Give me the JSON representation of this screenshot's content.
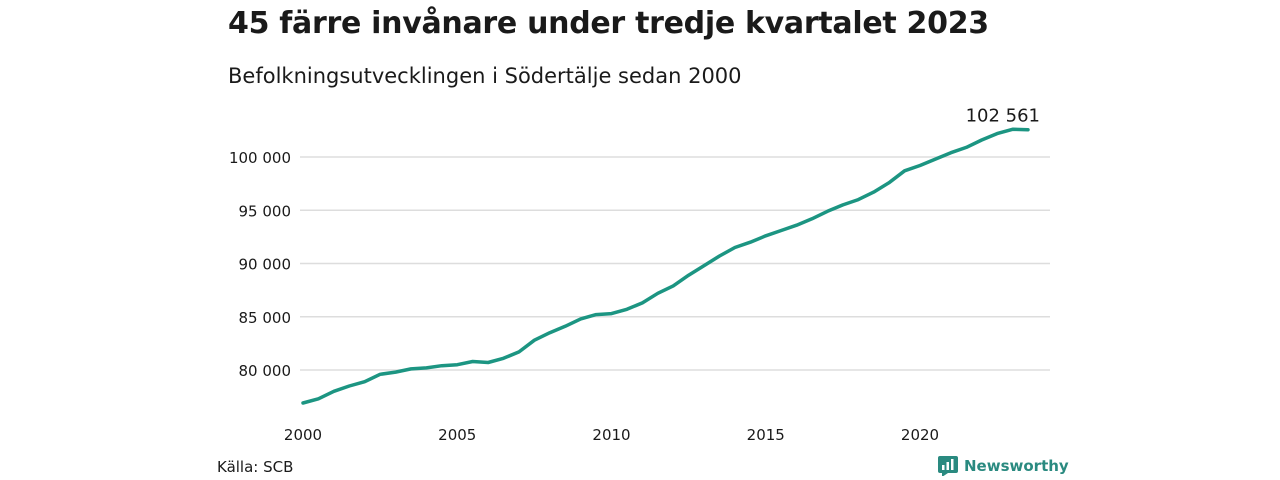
{
  "header": {
    "title": "45 färre invånare under tredje kvartalet 2023",
    "subtitle": "Befolkningsutvecklingen i Södertälje sedan 2000"
  },
  "footer": {
    "source": "Källa: SCB",
    "brand": "Newsworthy",
    "brand_icon": "chart-logo-icon"
  },
  "colors": {
    "line": "#1c9582",
    "grid": "#dddddd",
    "brand": "#2a8a80"
  },
  "chart_data": {
    "type": "line",
    "title": "45 färre invånare under tredje kvartalet 2023",
    "subtitle": "Befolkningsutvecklingen i Södertälje sedan 2000",
    "xlabel": "",
    "ylabel": "",
    "xlim": [
      2000,
      2025
    ],
    "ylim": [
      76000,
      103500
    ],
    "x_ticks": [
      2000,
      2005,
      2010,
      2015,
      2020
    ],
    "x_tick_labels": [
      "2000",
      "2005",
      "2010",
      "2015",
      "2020"
    ],
    "y_ticks": [
      80000,
      85000,
      90000,
      95000,
      100000
    ],
    "y_tick_labels": [
      "80 000",
      "85 000",
      "90 000",
      "95 000",
      "100 000"
    ],
    "grid": "horizontal",
    "end_label": "102 561",
    "series": [
      {
        "x": [
          2000.0,
          2000.5,
          2001.0,
          2001.5,
          2002.0,
          2002.5,
          2003.0,
          2003.5,
          2004.0,
          2004.5,
          2005.0,
          2005.5,
          2006.0,
          2006.5,
          2007.0,
          2007.5,
          2008.0,
          2008.5,
          2009.0,
          2009.5,
          2010.0,
          2010.5,
          2011.0,
          2011.5,
          2012.0,
          2012.5,
          2013.0,
          2013.5,
          2014.0,
          2014.5,
          2015.0,
          2015.5,
          2016.0,
          2016.5,
          2017.0,
          2017.5,
          2018.0,
          2018.5,
          2019.0,
          2019.5,
          2020.0,
          2020.5,
          2021.0,
          2021.5,
          2022.0,
          2022.5,
          2023.0,
          2023.5
        ],
        "values": [
          76900,
          77300,
          78000,
          78500,
          78900,
          79600,
          79800,
          80100,
          80200,
          80400,
          80500,
          80800,
          80700,
          81100,
          81700,
          82800,
          83500,
          84100,
          84800,
          85200,
          85300,
          85700,
          86300,
          87200,
          87900,
          88900,
          89800,
          90700,
          91500,
          92000,
          92600,
          93100,
          93600,
          94200,
          94900,
          95500,
          96000,
          96700,
          97600,
          98700,
          99200,
          99800,
          100400,
          100900,
          101600,
          102200,
          102600,
          102561
        ]
      }
    ]
  }
}
